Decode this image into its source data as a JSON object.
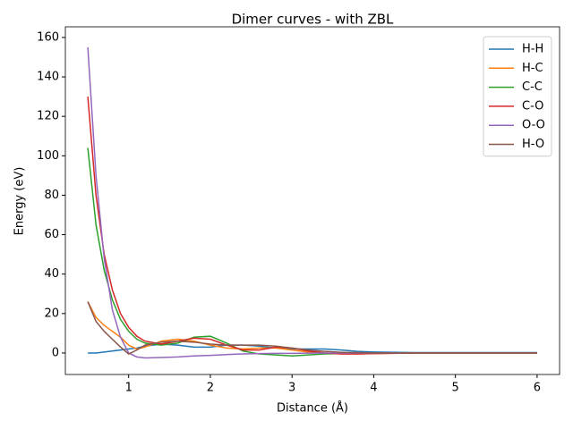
{
  "chart_data": {
    "type": "line",
    "title": "Dimer curves - with ZBL",
    "xlabel": "Distance (Å)",
    "ylabel": "Energy (eV)",
    "x": [
      0.5,
      0.6,
      0.7,
      0.8,
      0.9,
      1.0,
      1.1,
      1.2,
      1.4,
      1.6,
      1.8,
      2.0,
      2.2,
      2.4,
      2.6,
      2.8,
      3.0,
      3.2,
      3.4,
      3.6,
      3.8,
      4.0,
      4.5,
      5.0,
      5.5,
      6.0
    ],
    "series": [
      {
        "name": "H-H",
        "color": "#1f77b4",
        "values": [
          0,
          0,
          0.5,
          1,
          1.5,
          2,
          2.5,
          3.5,
          4.5,
          4,
          3,
          3,
          4,
          4,
          3.5,
          2.5,
          2,
          2,
          2,
          1.5,
          0.8,
          0.5,
          0.2,
          0.2,
          0.2,
          0.2
        ]
      },
      {
        "name": "H-C",
        "color": "#ff7f0e",
        "values": [
          26,
          18,
          14,
          11,
          8,
          4,
          2,
          3,
          6,
          7,
          6,
          4,
          2.5,
          2,
          2.5,
          2.5,
          1.5,
          0.5,
          0,
          -0.5,
          -0.5,
          -0.3,
          0,
          0,
          0,
          0
        ]
      },
      {
        "name": "C-C",
        "color": "#2ca02c",
        "values": [
          104,
          65,
          42,
          27,
          17,
          11,
          7,
          5,
          4,
          5,
          8,
          8.5,
          5,
          1,
          -0.5,
          -1,
          -1.5,
          -1,
          -0.5,
          -0.3,
          0,
          0,
          0,
          0,
          0,
          0
        ]
      },
      {
        "name": "C-O",
        "color": "#d62728",
        "values": [
          130,
          80,
          50,
          32,
          20,
          13,
          8.5,
          6,
          4.5,
          6,
          7.5,
          7,
          4,
          1.5,
          1.5,
          3,
          2.5,
          1,
          0,
          -0.5,
          -0.5,
          -0.3,
          0,
          0,
          0,
          0
        ]
      },
      {
        "name": "O-O",
        "color": "#9467bd",
        "values": [
          155,
          90,
          48,
          22,
          8,
          0,
          -2,
          -2.5,
          -2.3,
          -2,
          -1.5,
          -1.2,
          -0.8,
          -0.5,
          -0.3,
          -0.2,
          -0.2,
          -0.1,
          0,
          0,
          0,
          0,
          0,
          0,
          0,
          0
        ]
      },
      {
        "name": "H-O",
        "color": "#8c564b",
        "values": [
          26,
          16,
          11,
          7,
          3,
          -0.5,
          1.5,
          4,
          5.5,
          6,
          5.5,
          4.5,
          4,
          4,
          4,
          3.5,
          2.5,
          1.5,
          0.8,
          0.3,
          0.2,
          0,
          0,
          0,
          0,
          0
        ]
      }
    ],
    "xlim": [
      0.225,
      6.275
    ],
    "ylim": [
      -10.9,
      165.4
    ],
    "xticks": [
      1,
      2,
      3,
      4,
      5,
      6
    ],
    "yticks": [
      0,
      20,
      40,
      60,
      80,
      100,
      120,
      140,
      160
    ],
    "legend": "upper right",
    "grid": false
  }
}
